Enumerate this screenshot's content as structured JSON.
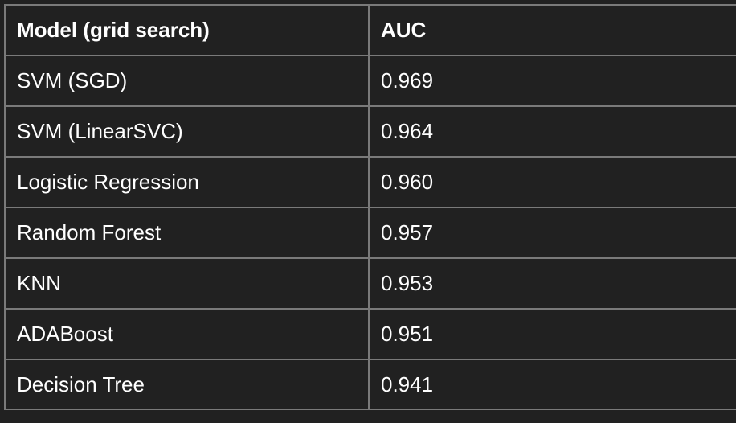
{
  "chart_data": {
    "type": "table",
    "columns": [
      "Model (grid search)",
      "AUC"
    ],
    "rows": [
      [
        "SVM (SGD)",
        "0.969"
      ],
      [
        "SVM (LinearSVC)",
        "0.964"
      ],
      [
        "Logistic Regression",
        "0.960"
      ],
      [
        "Random Forest",
        "0.957"
      ],
      [
        "KNN",
        "0.953"
      ],
      [
        "ADABoost",
        "0.951"
      ],
      [
        "Decision Tree",
        "0.941"
      ]
    ]
  },
  "colors": {
    "background": "#212121",
    "border": "#7a7a7a",
    "text": "#ffffff"
  }
}
